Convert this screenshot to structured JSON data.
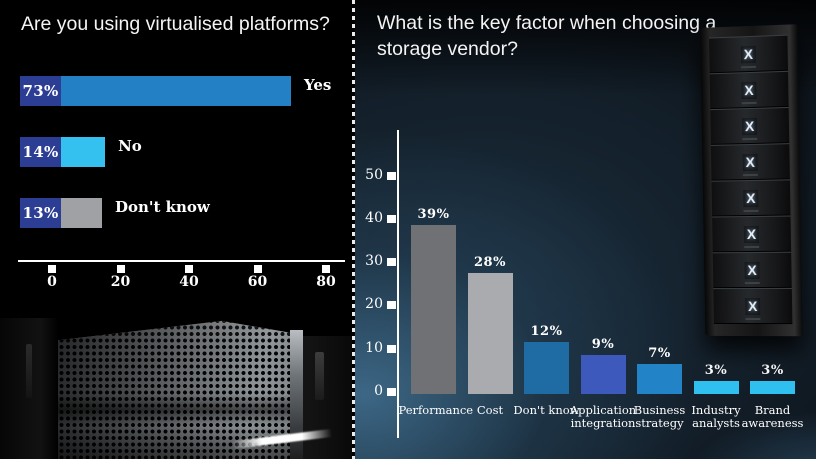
{
  "chart_data": [
    {
      "type": "bar",
      "orientation": "horizontal",
      "title": "Are you using virtualised platforms?",
      "categories": [
        "Yes",
        "No",
        "Don't know"
      ],
      "values": [
        73,
        14,
        13
      ],
      "value_labels": [
        "73%",
        "14%",
        "13%"
      ],
      "values_unit": "percent",
      "bar_colors": [
        "#2380c4",
        "#35c1ef",
        "#9fa1a4"
      ],
      "label_box_color": "#2c3d94",
      "xlim": [
        0,
        80
      ],
      "x_ticks": [
        0,
        20,
        40,
        60,
        80
      ],
      "grid": false,
      "legend": "none",
      "axis_color": "#ffffff",
      "text_color": "#ffffff",
      "background": "#000000"
    },
    {
      "type": "bar",
      "orientation": "vertical",
      "title": "What is the key factor when choosing a storage vendor?",
      "categories": [
        "Performance",
        "Cost",
        "Don't know",
        "Application integration",
        "Business strategy",
        "Industry analysts",
        "Brand awareness"
      ],
      "values": [
        39,
        28,
        12,
        9,
        7,
        3,
        3
      ],
      "value_labels": [
        "39%",
        "28%",
        "12%",
        "9%",
        "7%",
        "3%",
        "3%"
      ],
      "values_unit": "percent",
      "bar_colors": [
        "#707174",
        "#a9abae",
        "#1e6ca3",
        "#3c59bb",
        "#2283c6",
        "#2fc0f0",
        "#2fc0f0"
      ],
      "ylim": [
        0,
        60
      ],
      "y_ticks": [
        0,
        10,
        20,
        30,
        40,
        50
      ],
      "grid": false,
      "legend": "none",
      "axis_color": "#ffffff",
      "text_color": "#ffffff",
      "background_gradient": [
        "#05070a",
        "#1c2f3f",
        "#2e5570"
      ]
    }
  ],
  "decor": {
    "divider_style": "white dashed vertical line",
    "left_photo": "server chassis close-up with perforated grille",
    "right_photo": "storage rack tower with X-branded modules",
    "rack_logo": "X",
    "rack_modules": 8
  }
}
